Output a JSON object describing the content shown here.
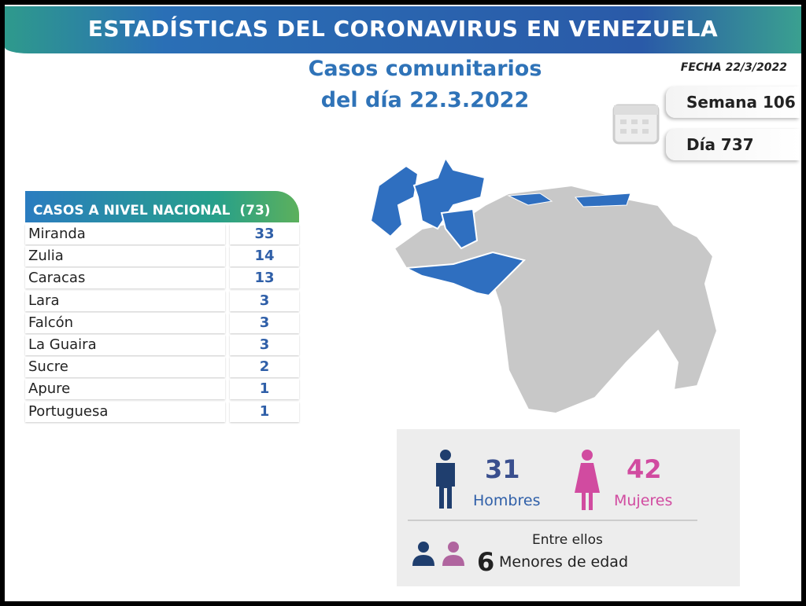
{
  "header": {
    "title": "ESTADÍSTICAS DEL CORONAVIRUS EN VENEZUELA",
    "date": "FECHA 22/3/2022"
  },
  "subtitle": [
    "Casos comunitarios",
    "del día 22.3.2022"
  ],
  "calendar": {
    "week": "Semana 106",
    "day": "Día 737"
  },
  "table": {
    "title": "CASOS A NIVEL NACIONAL",
    "total": "(73)",
    "rows": [
      [
        "Miranda",
        33
      ],
      [
        "Zulia",
        14
      ],
      [
        "Caracas",
        13
      ],
      [
        "Lara",
        3
      ],
      [
        "Falcón",
        3
      ],
      [
        "La Guaira",
        3
      ],
      [
        "Sucre",
        2
      ],
      [
        "Apure",
        1
      ],
      [
        "Portuguesa",
        1
      ]
    ]
  },
  "gender": {
    "men": {
      "value": 31,
      "label": "Hombres"
    },
    "women": {
      "value": 42,
      "label": "Mujeres"
    },
    "note": "Entre ellos",
    "minors": {
      "value": 6,
      "label": "Menores de edad"
    }
  }
}
